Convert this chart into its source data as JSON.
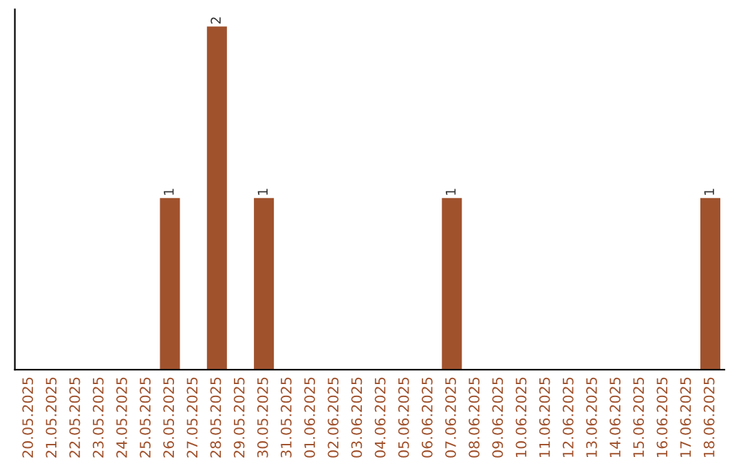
{
  "chart_data": {
    "type": "bar",
    "categories": [
      "20.05.2025",
      "21.05.2025",
      "22.05.2025",
      "23.05.2025",
      "24.05.2025",
      "25.05.2025",
      "26.05.2025",
      "27.05.2025",
      "28.05.2025",
      "29.05.2025",
      "30.05.2025",
      "31.05.2025",
      "01.06.2025",
      "02.06.2025",
      "03.06.2025",
      "04.06.2025",
      "05.06.2025",
      "06.06.2025",
      "07.06.2025",
      "08.06.2025",
      "09.06.2025",
      "10.06.2025",
      "11.06.2025",
      "12.06.2025",
      "13.06.2025",
      "14.06.2025",
      "15.06.2025",
      "16.06.2025",
      "17.06.2025",
      "18.06.2025"
    ],
    "values": [
      0,
      0,
      0,
      0,
      0,
      0,
      1,
      0,
      2,
      0,
      1,
      0,
      0,
      0,
      0,
      0,
      0,
      0,
      1,
      0,
      0,
      0,
      0,
      0,
      0,
      0,
      0,
      0,
      0,
      1
    ],
    "value_labels": [
      null,
      null,
      null,
      null,
      null,
      null,
      "1",
      null,
      "2",
      null,
      "1",
      null,
      null,
      null,
      null,
      null,
      null,
      null,
      "1",
      null,
      null,
      null,
      null,
      null,
      null,
      null,
      null,
      null,
      null,
      "1"
    ],
    "color": "#a0522d",
    "tick_labels": "x"
  }
}
